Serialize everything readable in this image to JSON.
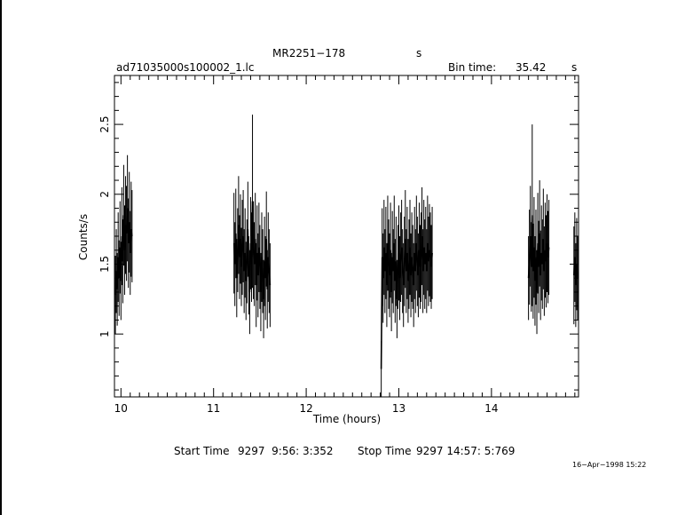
{
  "header": {
    "object_name": "MR2251−178",
    "object_suffix": "s",
    "filename": "ad71035000s100002_1.lc",
    "bin_time_label": "Bin time:",
    "bin_time_value": "35.42",
    "bin_time_unit": "s"
  },
  "footer": {
    "start_label": "Start Time",
    "start_value": "9297  9:56: 3:352",
    "stop_label": "Stop Time",
    "stop_value": "9297 14:57: 5:769",
    "timestamp": "16−Apr−1998 15:22"
  },
  "colors": {
    "line": "#000000",
    "background": "#ffffff"
  },
  "chart_data": {
    "type": "line",
    "title": "MR2251−178",
    "xlabel": "Time (hours)",
    "ylabel": "Counts/s",
    "xlim": [
      9.93,
      14.94
    ],
    "ylim": [
      0.55,
      2.85
    ],
    "x_ticks": [
      10,
      11,
      12,
      13,
      14
    ],
    "y_ticks": [
      1,
      1.5,
      2,
      2.5
    ],
    "y_tick_labels": [
      "1",
      "1.5",
      "2",
      "2.5"
    ],
    "x_tick_labels": [
      "10",
      "11",
      "12",
      "13",
      "14"
    ],
    "grid": false,
    "segments": [
      {
        "x": [
          9.94,
          9.95,
          9.96,
          9.97,
          9.98,
          9.99,
          10.0,
          10.01,
          10.02,
          10.03,
          10.04,
          10.05,
          10.06,
          10.07,
          10.08,
          10.09,
          10.1,
          10.11,
          10.12
        ],
        "y": [
          1.28,
          1.45,
          1.32,
          1.55,
          1.4,
          1.62,
          1.38,
          1.7,
          1.52,
          1.85,
          1.6,
          1.78,
          1.72,
          1.9,
          1.65,
          1.8,
          1.58,
          1.75,
          1.7
        ],
        "err": [
          0.28,
          0.3,
          0.26,
          0.32,
          0.27,
          0.33,
          0.28,
          0.35,
          0.3,
          0.36,
          0.32,
          0.35,
          0.34,
          0.38,
          0.32,
          0.36,
          0.3,
          0.34,
          0.33
        ]
      },
      {
        "x": [
          11.22,
          11.23,
          11.24,
          11.25,
          11.26,
          11.27,
          11.28,
          11.29,
          11.3,
          11.31,
          11.32,
          11.33,
          11.34,
          11.35,
          11.36,
          11.37,
          11.38,
          11.39,
          11.4,
          11.41,
          11.42,
          11.43,
          11.44,
          11.45,
          11.46,
          11.47,
          11.48,
          11.49,
          11.5,
          11.51,
          11.52,
          11.53,
          11.54,
          11.55,
          11.56,
          11.57,
          11.58,
          11.59,
          11.6,
          11.61
        ],
        "y": [
          1.65,
          1.5,
          1.72,
          1.4,
          1.6,
          1.78,
          1.55,
          1.68,
          1.48,
          1.62,
          1.7,
          1.45,
          1.58,
          1.38,
          1.52,
          1.75,
          1.42,
          1.3,
          1.65,
          1.55,
          1.95,
          1.6,
          1.5,
          1.68,
          1.35,
          1.58,
          1.42,
          1.62,
          1.48,
          1.3,
          1.55,
          1.45,
          1.25,
          1.52,
          1.4,
          1.68,
          1.32,
          1.55,
          1.45,
          1.35
        ],
        "err": [
          0.36,
          0.3,
          0.32,
          0.28,
          0.3,
          0.35,
          0.3,
          0.32,
          0.28,
          0.34,
          0.33,
          0.3,
          0.32,
          0.28,
          0.3,
          0.34,
          0.28,
          0.3,
          0.33,
          0.32,
          0.62,
          0.35,
          0.3,
          0.33,
          0.3,
          0.34,
          0.3,
          0.32,
          0.3,
          0.28,
          0.32,
          0.3,
          0.28,
          0.32,
          0.3,
          0.34,
          0.28,
          0.32,
          0.3,
          0.3
        ]
      },
      {
        "x": [
          12.81,
          12.82,
          12.83,
          12.84,
          12.85,
          12.86,
          12.87,
          12.88,
          12.89,
          12.9,
          12.91,
          12.92,
          12.93,
          12.94,
          12.95,
          12.96,
          12.97,
          12.98,
          12.99,
          13.0,
          13.01,
          13.02,
          13.03,
          13.04,
          13.05,
          13.06,
          13.07,
          13.08,
          13.09,
          13.1,
          13.11,
          13.12,
          13.13,
          13.14,
          13.15,
          13.16,
          13.17,
          13.18,
          13.19,
          13.2,
          13.21,
          13.22,
          13.23,
          13.24,
          13.25,
          13.26,
          13.27,
          13.28,
          13.29,
          13.3,
          13.31,
          13.32,
          13.33,
          13.34,
          13.35,
          13.36
        ],
        "y": [
          0.75,
          1.55,
          1.4,
          1.62,
          1.45,
          1.58,
          1.35,
          1.65,
          1.5,
          1.42,
          1.6,
          1.3,
          1.55,
          1.45,
          1.65,
          1.38,
          1.52,
          1.25,
          1.48,
          1.58,
          1.4,
          1.55,
          1.62,
          1.45,
          1.35,
          1.52,
          1.68,
          1.45,
          1.58,
          1.38,
          1.5,
          1.62,
          1.42,
          1.55,
          1.48,
          1.35,
          1.58,
          1.45,
          1.65,
          1.52,
          1.42,
          1.6,
          1.48,
          1.55,
          1.7,
          1.45,
          1.62,
          1.5,
          1.58,
          1.45,
          1.65,
          1.52,
          1.6,
          1.55,
          1.48,
          1.58
        ],
        "err": [
          0.2,
          0.35,
          0.32,
          0.34,
          0.3,
          0.33,
          0.3,
          0.34,
          0.32,
          0.3,
          0.34,
          0.28,
          0.33,
          0.3,
          0.34,
          0.3,
          0.32,
          0.28,
          0.3,
          0.34,
          0.3,
          0.32,
          0.34,
          0.3,
          0.3,
          0.32,
          0.35,
          0.3,
          0.33,
          0.3,
          0.32,
          0.34,
          0.3,
          0.32,
          0.3,
          0.3,
          0.33,
          0.3,
          0.34,
          0.32,
          0.3,
          0.34,
          0.3,
          0.32,
          0.35,
          0.3,
          0.34,
          0.32,
          0.33,
          0.3,
          0.34,
          0.32,
          0.33,
          0.32,
          0.3,
          0.33
        ]
      },
      {
        "x": [
          14.4,
          14.41,
          14.42,
          14.43,
          14.44,
          14.45,
          14.46,
          14.47,
          14.48,
          14.49,
          14.5,
          14.51,
          14.52,
          14.53,
          14.54,
          14.55,
          14.56,
          14.57,
          14.58,
          14.59,
          14.6,
          14.61,
          14.62
        ],
        "y": [
          1.4,
          1.55,
          1.7,
          1.48,
          1.85,
          1.45,
          1.62,
          1.38,
          1.55,
          1.3,
          1.65,
          1.48,
          1.72,
          1.42,
          1.58,
          1.5,
          1.68,
          1.45,
          1.6,
          1.52,
          1.65,
          1.55,
          1.62
        ],
        "err": [
          0.3,
          0.34,
          0.36,
          0.32,
          0.65,
          0.34,
          0.36,
          0.32,
          0.34,
          0.3,
          0.36,
          0.33,
          0.38,
          0.32,
          0.34,
          0.32,
          0.36,
          0.32,
          0.34,
          0.33,
          0.35,
          0.33,
          0.34
        ]
      },
      {
        "x": [
          14.89,
          14.9,
          14.91,
          14.92,
          14.93
        ],
        "y": [
          1.42,
          1.55,
          1.35,
          1.5,
          1.4
        ],
        "err": [
          0.35,
          0.32,
          0.3,
          0.33,
          0.3
        ]
      }
    ]
  }
}
